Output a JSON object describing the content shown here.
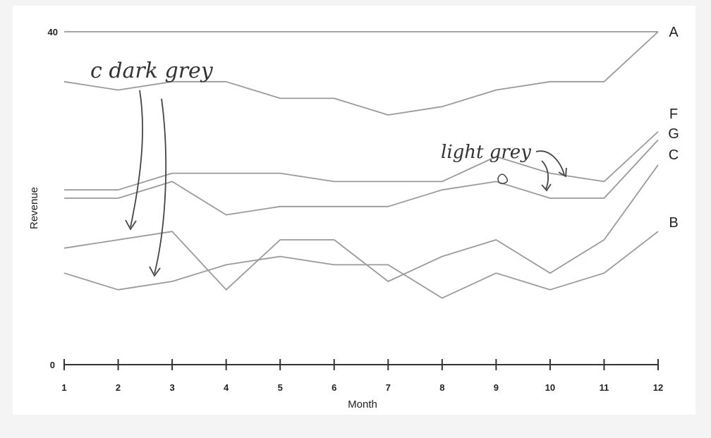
{
  "chart_data": {
    "type": "line",
    "title": "",
    "xlabel": "Month",
    "ylabel": "Revenue",
    "x": [
      1,
      2,
      3,
      4,
      5,
      6,
      7,
      8,
      9,
      10,
      11,
      12
    ],
    "xlim": [
      1,
      12
    ],
    "ylim": [
      0,
      40
    ],
    "yticks": [
      "0",
      "40"
    ],
    "grid": false,
    "series": [
      {
        "name": "A",
        "values": [
          40,
          40,
          40,
          40,
          40,
          40,
          40,
          40,
          40,
          40,
          40,
          40
        ]
      },
      {
        "name": "B",
        "values": [
          11,
          9,
          10,
          12,
          13,
          12,
          12,
          8,
          11,
          9,
          11,
          16
        ]
      },
      {
        "name": "C",
        "values": [
          14,
          15,
          16,
          9,
          15,
          15,
          10,
          13,
          15,
          11,
          15,
          24
        ]
      },
      {
        "name": "F",
        "values": [
          21,
          21,
          23,
          23,
          23,
          22,
          22,
          22,
          25,
          23,
          22,
          28
        ]
      },
      {
        "name": "G",
        "values": [
          20,
          20,
          22,
          18,
          19,
          19,
          19,
          21,
          22,
          20,
          20,
          27
        ]
      },
      {
        "name": "dark grey",
        "values": [
          34,
          33,
          34,
          34,
          32,
          32,
          30,
          31,
          33,
          34,
          34,
          40
        ]
      }
    ],
    "annotations": [
      "dark grey",
      "light grey"
    ]
  }
}
